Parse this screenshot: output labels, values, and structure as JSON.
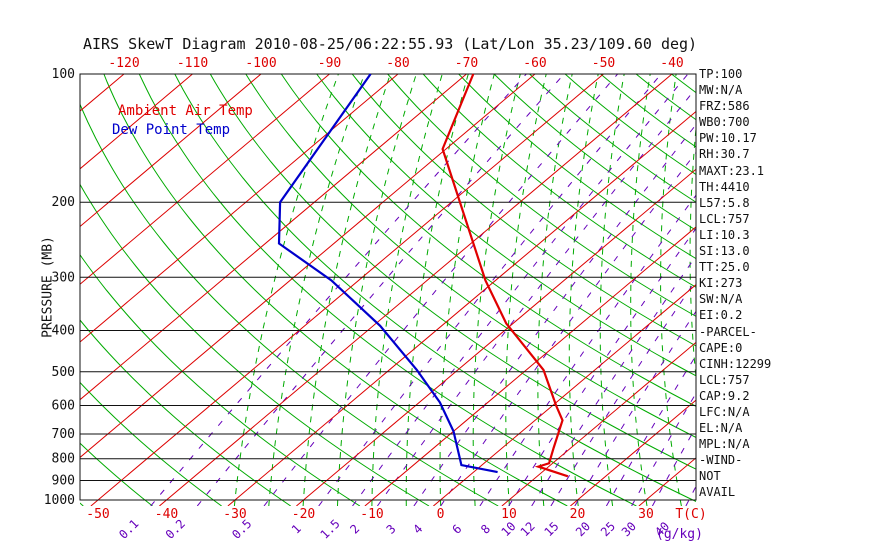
{
  "title": "AIRS SkewT Diagram 2010-08-25/06:22:55.93 (Lat/Lon 35.23/109.60 deg)",
  "legend": {
    "ambient": "Ambient Air Temp",
    "dew": "Dew Point Temp"
  },
  "axes": {
    "pressure_title": "PRESSURE (MB)",
    "pressure_ticks": [
      100,
      200,
      300,
      400,
      500,
      600,
      700,
      800,
      900,
      1000
    ],
    "top_temp_ticks": [
      -120,
      -110,
      -100,
      -90,
      -80,
      -70,
      -60,
      -50,
      -40
    ],
    "bottom_temp_ticks": [
      -50,
      -40,
      -30,
      -20,
      -10,
      0,
      10,
      20,
      30
    ],
    "bottom_temp_unit": "T(C)",
    "mixing_ratio_ticks": [
      0.1,
      0.2,
      0.5,
      1,
      1.5,
      2,
      3,
      4,
      6,
      8,
      10,
      12,
      15,
      20,
      25,
      30,
      40
    ],
    "mixing_ratio_unit": "(g/kg)"
  },
  "stats": [
    "TP:100",
    "MW:N/A",
    "FRZ:586",
    "WB0:700",
    "PW:10.17",
    "RH:30.7",
    "MAXT:23.1",
    "TH:4410",
    "L57:5.8",
    "LCL:757",
    "LI:10.3",
    "SI:13.0",
    "TT:25.0",
    "KI:273",
    "SW:N/A",
    "EI:0.2",
    "-PARCEL-",
    "CAPE:0",
    "CINH:12299",
    "LCL:757",
    "CAP:9.2",
    "LFC:N/A",
    "EL:N/A",
    "MPL:N/A",
    "-WIND-",
    "NOT",
    "AVAIL"
  ],
  "colors": {
    "isotherm_red": "#dd0000",
    "adiabat_green": "#00aa00",
    "mixing_purple": "#6600bb",
    "temp_trace": "#e00000",
    "dew_trace": "#0000cc",
    "axis_black": "#111111",
    "label_red": "#dd0000"
  },
  "chart_data": {
    "type": "line",
    "title": "AIRS SkewT Diagram 2010-08-25/06:22:55.93 (Lat/Lon 35.23/109.60 deg)",
    "xlabel": "T(C)",
    "ylabel": "PRESSURE (MB)",
    "y_scale": "log",
    "y_range_mb": [
      100,
      1000
    ],
    "x_bottom_range_c": [
      -52,
      37
    ],
    "x_top_range_c": [
      -125,
      -36
    ],
    "legend_position": "top-left",
    "series": [
      {
        "name": "Ambient Air Temp",
        "color": "#e00000",
        "points_p_t": [
          [
            100,
            -69
          ],
          [
            150,
            -60.5
          ],
          [
            305,
            -31.5
          ],
          [
            385,
            -21
          ],
          [
            495,
            -7.5
          ],
          [
            600,
            0.5
          ],
          [
            650,
            4
          ],
          [
            755,
            7.5
          ],
          [
            820,
            9.5
          ],
          [
            835,
            8.5
          ],
          [
            880,
            14.5
          ]
        ]
      },
      {
        "name": "Dew Point Temp",
        "color": "#0000cc",
        "points_p_t": [
          [
            100,
            -84
          ],
          [
            200,
            -75
          ],
          [
            250,
            -68
          ],
          [
            305,
            -54
          ],
          [
            390,
            -39
          ],
          [
            495,
            -26
          ],
          [
            590,
            -17
          ],
          [
            690,
            -10
          ],
          [
            828,
            -3
          ],
          [
            860,
            3.5
          ]
        ]
      }
    ],
    "grid": {
      "isotherms_c": [
        -120,
        -110,
        -100,
        -90,
        -80,
        -70,
        -60,
        -50,
        -40,
        -30,
        -20,
        -10,
        0,
        10,
        20,
        30
      ],
      "dry_adiabats_k": [
        220,
        230,
        240,
        250,
        260,
        270,
        280,
        290,
        300,
        310,
        320,
        330,
        340,
        350,
        360,
        370,
        380,
        390,
        400,
        410,
        420,
        430,
        440,
        450,
        460
      ],
      "moist_adiabats_surface_c": [
        -30,
        -25,
        -20,
        -15,
        -10,
        -5,
        0,
        5,
        10,
        15,
        20,
        25,
        30,
        35,
        40
      ],
      "mixing_ratio_g_kg": [
        0.1,
        0.2,
        0.5,
        1,
        1.5,
        2,
        3,
        4,
        6,
        8,
        10,
        12,
        15,
        20,
        25,
        30,
        40
      ]
    }
  }
}
